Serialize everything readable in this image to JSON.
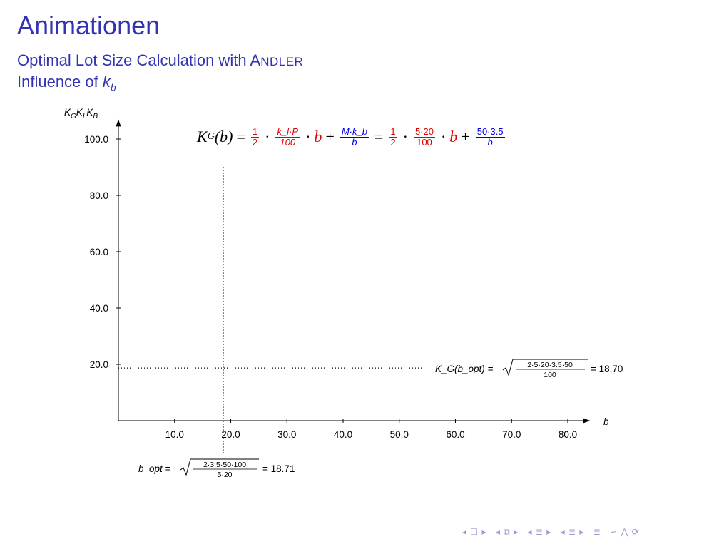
{
  "slide": {
    "title": "Animationen",
    "subtitle_prefix": "Optimal Lot Size Calculation with ",
    "subtitle_name_initial": "A",
    "subtitle_name_rest": "NDLER",
    "influence_prefix": "Influence of ",
    "influence_var": "k",
    "influence_sub": "b"
  },
  "formula": {
    "lhs_K": "K",
    "lhs_sub": "G",
    "lhs_arg": "(b)",
    "eq": "=",
    "half_num": "1",
    "half_den": "2",
    "dot": "·",
    "plus": "+",
    "var_b": "b",
    "sym_frac_num": "k_l·P",
    "sym_frac_den": "100",
    "sym_frac2_num": "M·k_b",
    "sym_frac2_den": "b",
    "num_frac_num": "5·20",
    "num_frac_den": "100",
    "num_frac2_num": "50·3.5",
    "num_frac2_den": "b"
  },
  "annotations": {
    "kg_opt_label": "K_G(b_opt) =",
    "kg_opt_radicand_num": "2·5·20·3.5·50",
    "kg_opt_radicand_den": "100",
    "kg_opt_value": "= 18.70",
    "b_opt_label": "b_opt =",
    "b_opt_radicand_num": "2·3.5·50·100",
    "b_opt_radicand_den": "5·20",
    "b_opt_value": "= 18.71"
  },
  "chart_data": {
    "type": "line",
    "title": "",
    "xlabel": "b",
    "ylabel": "K_G K_L K_B",
    "xlim": [
      0,
      84
    ],
    "ylim": [
      0,
      107
    ],
    "x_ticks": [
      10,
      20,
      30,
      40,
      50,
      60,
      70,
      80
    ],
    "x_tick_labels": [
      "10.0",
      "20.0",
      "30.0",
      "40.0",
      "50.0",
      "60.0",
      "70.0",
      "80.0"
    ],
    "y_ticks": [
      20,
      40,
      60,
      80,
      100
    ],
    "y_tick_labels": [
      "20.0",
      "40.0",
      "60.0",
      "80.0",
      "100.0"
    ],
    "series": [],
    "reference_lines": {
      "b_opt": 18.71,
      "kg_opt": 18.7,
      "vertical_top": 90
    }
  },
  "nav": {
    "symbols": [
      "◂ ☐ ▸",
      "◂ ⧉ ▸",
      "◂ ≣ ▸",
      "◂ ≣ ▸",
      "≣",
      "∽ ⋀ ⟳"
    ]
  },
  "colors": {
    "theme": "#3333b3",
    "red": "#e00000",
    "blue": "#0000e0"
  }
}
